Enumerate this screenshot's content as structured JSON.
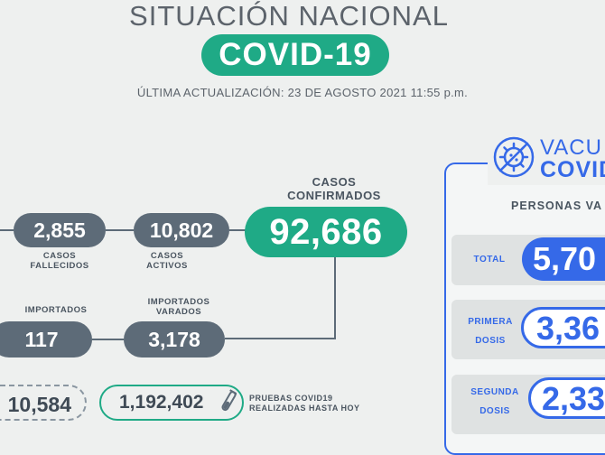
{
  "header": {
    "title": "SITUACIÓN NACIONAL",
    "badge": "COVID-19",
    "updated": "ÚLTIMA ACTUALIZACIÓN: 23 DE AGOSTO 2021 11:55 p.m."
  },
  "stats": {
    "confirmed_label_1": "CASOS",
    "confirmed_label_2": "CONFIRMADOS",
    "confirmed": "92,686",
    "deaths": "2,855",
    "deaths_label_1": "CASOS",
    "deaths_label_2": "FALLECIDOS",
    "active": "10,802",
    "active_label_1": "CASOS",
    "active_label_2": "ACTIVOS",
    "imported_label": "IMPORTADOS",
    "imported": "117",
    "stranded_label_1": "IMPORTADOS",
    "stranded_label_2": "VARADOS",
    "stranded": "3,178",
    "other": "10,584",
    "tests": "1,192,402",
    "tests_label_1": "PRUEBAS COVID19",
    "tests_label_2": "REALIZADAS HASTA HOY"
  },
  "vaccine": {
    "title_1": "VACU",
    "title_2": "COVID",
    "subtitle": "PERSONAS VA",
    "total_label": "TOTAL",
    "total": "5,70",
    "first_label_1": "PRIMERA",
    "first_label_2": "DOSIS",
    "first": "3,36",
    "second_label_1": "SEGUNDA",
    "second_label_2": "DOSIS",
    "second": "2,33"
  },
  "icons": [
    "virus-icon",
    "test-tube-icon"
  ],
  "colors": {
    "green": "#1faa86",
    "slate": "#5d6b78",
    "blue": "#3569e8"
  }
}
